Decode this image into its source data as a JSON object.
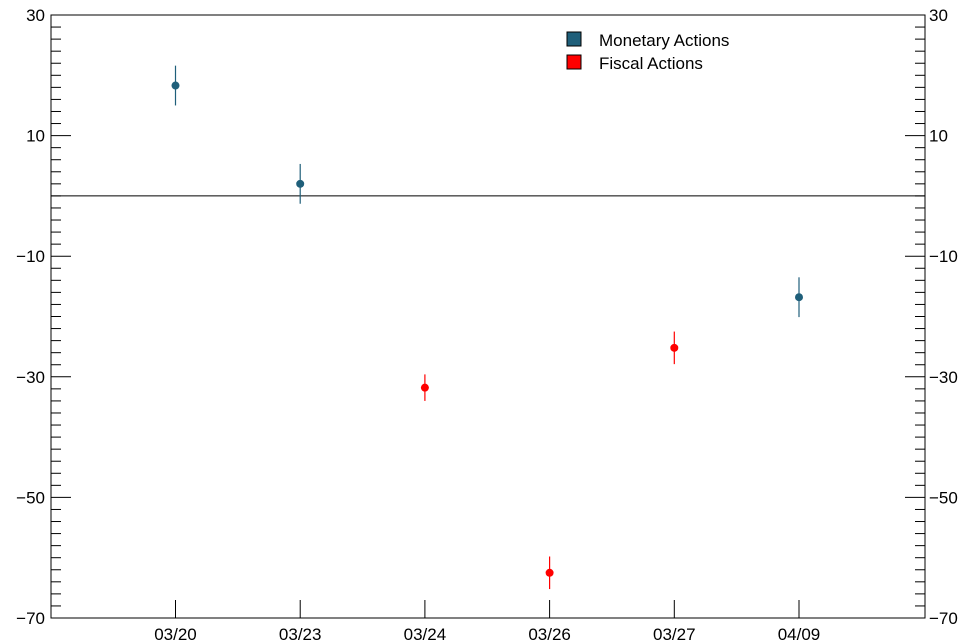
{
  "chart_data": {
    "type": "scatter",
    "title": "",
    "xlabel": "",
    "ylabel": "",
    "categories": [
      "03/20",
      "03/23",
      "03/24",
      "03/26",
      "03/27",
      "04/09"
    ],
    "ylim": [
      -70,
      30
    ],
    "yticks": [
      30,
      10,
      -10,
      -30,
      -50,
      -70
    ],
    "ytick_labels": [
      "30",
      "10",
      "−10",
      "−30",
      "−50",
      "−70"
    ],
    "zero_line": 0,
    "grid": false,
    "legend_position": "top-right",
    "series": [
      {
        "name": "Monetary Actions",
        "color": "#1f5f7a",
        "points": [
          {
            "category": "03/20",
            "y": 18.3,
            "err": 3.3
          },
          {
            "category": "03/23",
            "y": 2.0,
            "err": 3.3
          },
          {
            "category": "04/09",
            "y": -16.8,
            "err": 3.3
          }
        ]
      },
      {
        "name": "Fiscal Actions",
        "color": "#ff0000",
        "points": [
          {
            "category": "03/24",
            "y": -31.8,
            "err": 2.2
          },
          {
            "category": "03/26",
            "y": -62.5,
            "err": 2.7
          },
          {
            "category": "03/27",
            "y": -25.2,
            "err": 2.7
          }
        ]
      }
    ]
  }
}
